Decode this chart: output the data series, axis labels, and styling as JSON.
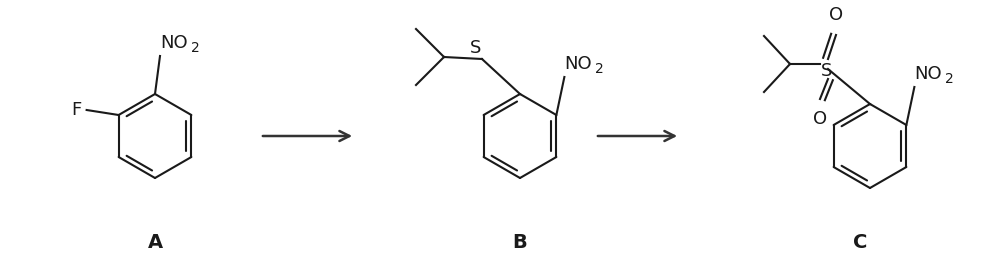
{
  "figsize": [
    10.0,
    2.71
  ],
  "dpi": 100,
  "bg_color": "#ffffff",
  "line_color": "#1a1a1a",
  "line_width": 1.5,
  "label_A": "A",
  "label_B": "B",
  "label_C": "C",
  "label_fontsize": 14,
  "label_fontweight": "bold",
  "chem_fontsize": 13,
  "sub_fontsize": 10,
  "arrow_color": "#333333"
}
